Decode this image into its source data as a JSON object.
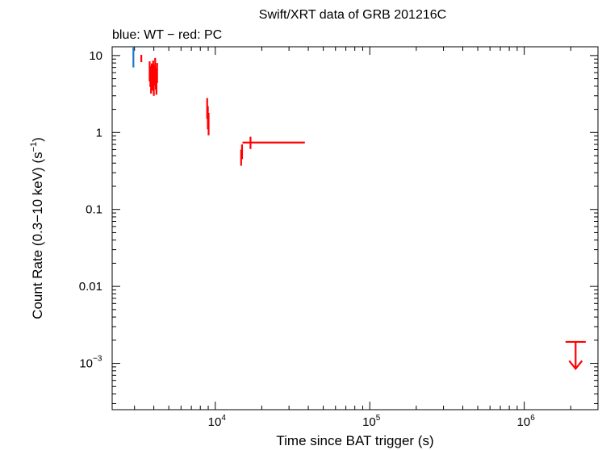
{
  "chart_data": {
    "type": "scatter",
    "title": "Swift/XRT data of GRB 201216C",
    "subtitle": "blue: WT − red: PC",
    "xlabel": "Time since BAT trigger (s)",
    "ylabel_main": "Count Rate (0.3−10 keV) (s",
    "ylabel_sup": "−1",
    "ylabel_end": ")",
    "x_scale": "log",
    "y_scale": "log",
    "xlim": [
      2150,
      3000000
    ],
    "ylim": [
      0.00025,
      13
    ],
    "grid": false,
    "colors": {
      "WT": "#1f77c8",
      "PC": "#ff0000"
    },
    "x_ticks": [
      {
        "value": 10000,
        "base": "10",
        "exp": "4"
      },
      {
        "value": 100000,
        "base": "10",
        "exp": "5"
      },
      {
        "value": 1000000,
        "base": "10",
        "exp": "6"
      }
    ],
    "y_ticks": [
      {
        "value": 10,
        "label": "10",
        "sup": ""
      },
      {
        "value": 1,
        "label": "1",
        "sup": ""
      },
      {
        "value": 0.1,
        "label": "0.1",
        "sup": ""
      },
      {
        "value": 0.01,
        "label": "0.01",
        "sup": ""
      },
      {
        "value": 0.001,
        "label": "10",
        "sup": "−3"
      }
    ],
    "series": [
      {
        "name": "WT",
        "color": "#1f77c8",
        "points": [
          {
            "x": 2950,
            "y": 9.5,
            "ylo": 7.0,
            "yhi": 13
          }
        ]
      },
      {
        "name": "PC",
        "color": "#ff0000",
        "points": [
          {
            "x": 3320,
            "y": 9.1,
            "xlo": 3290,
            "xhi": 3350,
            "ylo": 8.2,
            "yhi": 10.2
          },
          {
            "x": 3760,
            "y": 6.3,
            "xlo": 3745,
            "xhi": 3775,
            "ylo": 4.6,
            "yhi": 8.4
          },
          {
            "x": 3800,
            "y": 5.5,
            "xlo": 3785,
            "xhi": 3815,
            "ylo": 3.9,
            "yhi": 7.3
          },
          {
            "x": 3840,
            "y": 4.6,
            "xlo": 3825,
            "xhi": 3855,
            "ylo": 3.2,
            "yhi": 6.3
          },
          {
            "x": 3880,
            "y": 5.9,
            "xlo": 3865,
            "xhi": 3895,
            "ylo": 4.3,
            "yhi": 7.9
          },
          {
            "x": 3920,
            "y": 4.9,
            "xlo": 3905,
            "xhi": 3935,
            "ylo": 3.5,
            "yhi": 6.6
          },
          {
            "x": 3960,
            "y": 6.6,
            "xlo": 3945,
            "xhi": 3975,
            "ylo": 4.8,
            "yhi": 8.6
          },
          {
            "x": 4000,
            "y": 4.3,
            "xlo": 3985,
            "xhi": 4015,
            "ylo": 3.0,
            "yhi": 5.9
          },
          {
            "x": 4040,
            "y": 5.7,
            "xlo": 4025,
            "xhi": 4055,
            "ylo": 4.1,
            "yhi": 7.6
          },
          {
            "x": 4080,
            "y": 7.1,
            "xlo": 4065,
            "xhi": 4095,
            "ylo": 5.3,
            "yhi": 9.3
          },
          {
            "x": 4120,
            "y": 5.1,
            "xlo": 4105,
            "xhi": 4135,
            "ylo": 3.6,
            "yhi": 6.9
          },
          {
            "x": 4160,
            "y": 4.4,
            "xlo": 4145,
            "xhi": 4175,
            "ylo": 3.1,
            "yhi": 6.0
          },
          {
            "x": 4200,
            "y": 6.0,
            "xlo": 4185,
            "xhi": 4215,
            "ylo": 4.4,
            "yhi": 8.0
          },
          {
            "x": 8860,
            "y": 2.1,
            "xlo": 8820,
            "xhi": 8900,
            "ylo": 1.5,
            "yhi": 2.8
          },
          {
            "x": 8950,
            "y": 1.6,
            "xlo": 8910,
            "xhi": 8990,
            "ylo": 1.1,
            "yhi": 2.2
          },
          {
            "x": 9050,
            "y": 1.3,
            "xlo": 9010,
            "xhi": 9090,
            "ylo": 0.92,
            "yhi": 1.8
          },
          {
            "x": 14700,
            "y": 0.49,
            "xlo": 14600,
            "xhi": 14800,
            "ylo": 0.37,
            "yhi": 0.6
          },
          {
            "x": 14900,
            "y": 0.57,
            "xlo": 14800,
            "xhi": 15000,
            "ylo": 0.45,
            "yhi": 0.7
          },
          {
            "x": 16900,
            "y": 0.74,
            "xlo": 15000,
            "xhi": 38000,
            "ylo": 0.61,
            "yhi": 0.88
          }
        ]
      }
    ],
    "upper_limits": [
      {
        "series": "PC",
        "x": 2150000,
        "y": 0.0019,
        "xlo": 1850000,
        "xhi": 2500000,
        "arrow_to": 0.00085
      }
    ]
  }
}
